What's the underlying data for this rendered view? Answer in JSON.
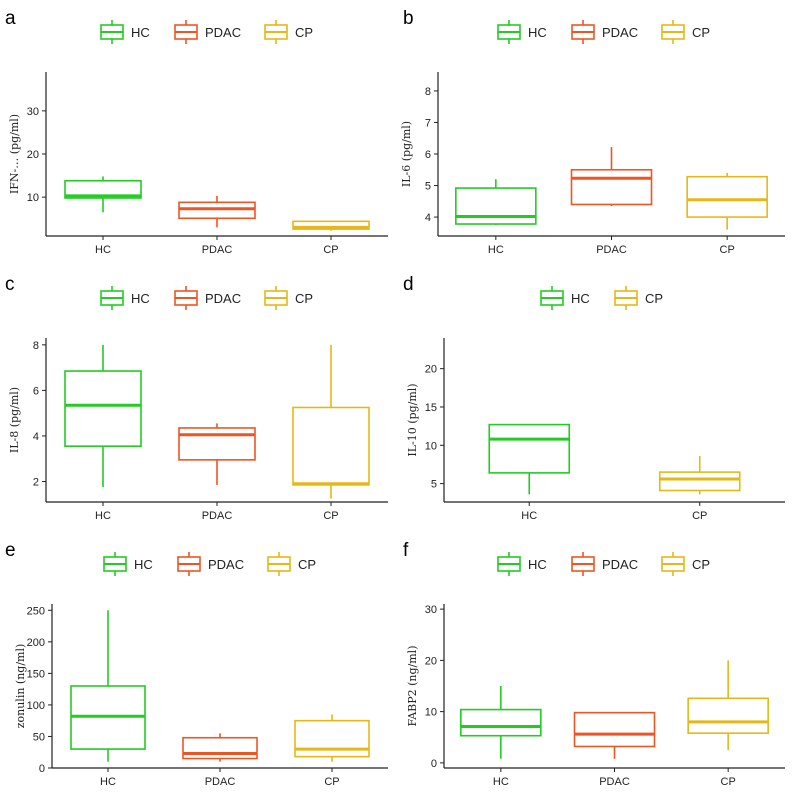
{
  "colors": {
    "HC": "#22cc22",
    "PDAC": "#ee5522",
    "CP": "#e6b817",
    "axis": "#222222"
  },
  "chart_data": [
    {
      "type": "boxplot",
      "panel": "a",
      "ylabel": "IFN-… (pg/ml)",
      "legend": [
        "HC",
        "PDAC",
        "CP"
      ],
      "categories": [
        "HC",
        "PDAC",
        "CP"
      ],
      "ylim": [
        1,
        39
      ],
      "yticks": [
        10,
        20,
        30
      ],
      "boxes": [
        {
          "group": "HC",
          "min": 6.5,
          "q1": 9.8,
          "median": 10.3,
          "q3": 13.8,
          "max": 14.8
        },
        {
          "group": "PDAC",
          "min": 3,
          "q1": 5.1,
          "median": 7.3,
          "q3": 8.8,
          "max": 10.3
        },
        {
          "group": "CP",
          "min": 2.2,
          "q1": 2.6,
          "median": 3,
          "q3": 4.4,
          "max": 4.4
        }
      ]
    },
    {
      "type": "boxplot",
      "panel": "b",
      "ylabel": "IL-6 (pg/ml)",
      "legend": [
        "HC",
        "PDAC",
        "CP"
      ],
      "categories": [
        "HC",
        "PDAC",
        "CP"
      ],
      "ylim": [
        3.4,
        8.6
      ],
      "yticks": [
        4,
        5,
        6,
        7,
        8
      ],
      "boxes": [
        {
          "group": "HC",
          "min": 3.75,
          "q1": 3.78,
          "median": 4.02,
          "q3": 4.92,
          "max": 5.2
        },
        {
          "group": "PDAC",
          "min": 4.35,
          "q1": 4.4,
          "median": 5.23,
          "q3": 5.5,
          "max": 6.22
        },
        {
          "group": "CP",
          "min": 3.6,
          "q1": 4.0,
          "median": 4.55,
          "q3": 5.28,
          "max": 5.4
        }
      ]
    },
    {
      "type": "boxplot",
      "panel": "c",
      "ylabel": "IL-8 (pg/ml)",
      "legend": [
        "HC",
        "PDAC",
        "CP"
      ],
      "categories": [
        "HC",
        "PDAC",
        "CP"
      ],
      "ylim": [
        1.1,
        8.3
      ],
      "yticks": [
        2,
        4,
        6,
        8
      ],
      "boxes": [
        {
          "group": "HC",
          "min": 1.75,
          "q1": 3.55,
          "median": 5.35,
          "q3": 6.85,
          "max": 8.0
        },
        {
          "group": "PDAC",
          "min": 1.85,
          "q1": 2.95,
          "median": 4.05,
          "q3": 4.35,
          "max": 4.55
        },
        {
          "group": "CP",
          "min": 1.25,
          "q1": 1.85,
          "median": 1.9,
          "q3": 5.25,
          "max": 8.0
        }
      ]
    },
    {
      "type": "boxplot",
      "panel": "d",
      "ylabel": "IL-10 (pg/ml)",
      "legend": [
        "HC",
        "CP"
      ],
      "categories": [
        "HC",
        "CP"
      ],
      "ylim": [
        2.6,
        24
      ],
      "yticks": [
        5,
        10,
        15,
        20
      ],
      "boxes": [
        {
          "group": "HC",
          "min": 3.6,
          "q1": 6.4,
          "median": 10.8,
          "q3": 12.7,
          "max": 12.7
        },
        {
          "group": "CP",
          "min": 3.6,
          "q1": 4.1,
          "median": 5.6,
          "q3": 6.5,
          "max": 8.6
        }
      ]
    },
    {
      "type": "boxplot",
      "panel": "e",
      "ylabel": "zonulin (ng/ml)",
      "legend": [
        "HC",
        "PDAC",
        "CP"
      ],
      "categories": [
        "HC",
        "PDAC",
        "CP"
      ],
      "ylim": [
        0,
        260
      ],
      "yticks": [
        0,
        50,
        100,
        150,
        200,
        250
      ],
      "boxes": [
        {
          "group": "HC",
          "min": 10,
          "q1": 30,
          "median": 82,
          "q3": 130,
          "max": 250
        },
        {
          "group": "PDAC",
          "min": 10,
          "q1": 15,
          "median": 23,
          "q3": 48,
          "max": 55
        },
        {
          "group": "CP",
          "min": 10,
          "q1": 18,
          "median": 30,
          "q3": 75,
          "max": 85
        }
      ]
    },
    {
      "type": "boxplot",
      "panel": "f",
      "ylabel": "FABP2 (ng/ml)",
      "legend": [
        "HC",
        "PDAC",
        "CP"
      ],
      "categories": [
        "HC",
        "PDAC",
        "CP"
      ],
      "ylim": [
        -1,
        31
      ],
      "yticks": [
        0,
        10,
        20,
        30
      ],
      "boxes": [
        {
          "group": "HC",
          "min": 0.8,
          "q1": 5.3,
          "median": 7.1,
          "q3": 10.4,
          "max": 15
        },
        {
          "group": "PDAC",
          "min": 0.8,
          "q1": 3.2,
          "median": 5.6,
          "q3": 9.8,
          "max": 9.8
        },
        {
          "group": "CP",
          "min": 2.5,
          "q1": 5.8,
          "median": 8,
          "q3": 12.6,
          "max": 20
        }
      ]
    }
  ]
}
